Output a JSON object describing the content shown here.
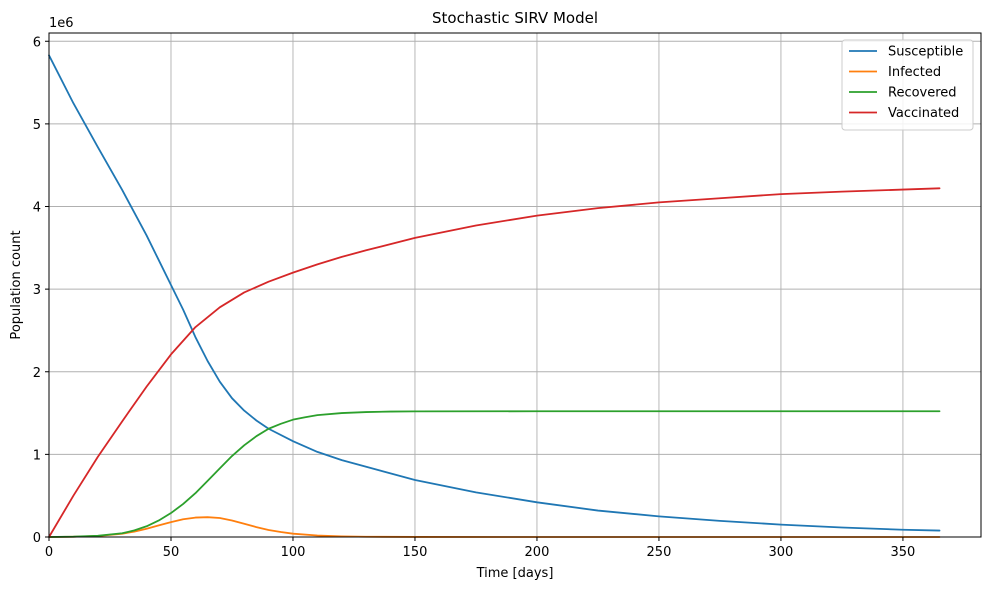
{
  "chart_data": {
    "type": "line",
    "title": "Stochastic SIRV Model",
    "xlabel": "Time [days]",
    "ylabel": "Population count",
    "y_offset_text": "1e6",
    "xlim": [
      0,
      382
    ],
    "ylim": [
      0,
      6100000
    ],
    "x_ticks": [
      0,
      50,
      100,
      150,
      200,
      250,
      300,
      350
    ],
    "y_ticks": [
      0,
      1000000,
      2000000,
      3000000,
      4000000,
      5000000,
      6000000
    ],
    "x_tick_labels": [
      "0",
      "50",
      "100",
      "150",
      "200",
      "250",
      "300",
      "350"
    ],
    "y_tick_labels": [
      "0",
      "1",
      "2",
      "3",
      "4",
      "5",
      "6"
    ],
    "grid": true,
    "legend_position": "top-right",
    "series": [
      {
        "name": "Susceptible",
        "color": "#1f77b4",
        "x": [
          0,
          10,
          20,
          30,
          40,
          45,
          50,
          55,
          60,
          65,
          70,
          75,
          80,
          85,
          90,
          100,
          110,
          120,
          130,
          150,
          175,
          200,
          225,
          250,
          275,
          300,
          325,
          350,
          365
        ],
        "y": [
          5830000,
          5250000,
          4720000,
          4200000,
          3650000,
          3350000,
          3050000,
          2750000,
          2420000,
          2130000,
          1880000,
          1680000,
          1530000,
          1410000,
          1310000,
          1160000,
          1030000,
          930000,
          850000,
          690000,
          540000,
          420000,
          320000,
          250000,
          195000,
          150000,
          115000,
          88000,
          78000
        ]
      },
      {
        "name": "Infected",
        "color": "#ff7f0e",
        "x": [
          0,
          10,
          20,
          30,
          35,
          40,
          45,
          50,
          55,
          60,
          65,
          70,
          75,
          80,
          85,
          90,
          95,
          100,
          110,
          120,
          130,
          150,
          200,
          250,
          300,
          350,
          365
        ],
        "y": [
          0,
          3000,
          12000,
          40000,
          65000,
          100000,
          140000,
          180000,
          215000,
          235000,
          240000,
          230000,
          200000,
          160000,
          120000,
          85000,
          60000,
          40000,
          18000,
          8000,
          3000,
          500,
          0,
          0,
          0,
          0,
          0
        ]
      },
      {
        "name": "Recovered",
        "color": "#2ca02c",
        "x": [
          0,
          10,
          20,
          30,
          35,
          40,
          45,
          50,
          55,
          60,
          65,
          70,
          75,
          80,
          85,
          90,
          95,
          100,
          105,
          110,
          120,
          130,
          140,
          150,
          200,
          250,
          300,
          350,
          365
        ],
        "y": [
          0,
          4000,
          15000,
          45000,
          80000,
          130000,
          200000,
          290000,
          400000,
          530000,
          680000,
          830000,
          980000,
          1110000,
          1220000,
          1310000,
          1370000,
          1420000,
          1450000,
          1475000,
          1500000,
          1512000,
          1518000,
          1520000,
          1522000,
          1522000,
          1522000,
          1522000,
          1522000
        ]
      },
      {
        "name": "Vaccinated",
        "color": "#d62728",
        "x": [
          0,
          10,
          20,
          30,
          40,
          50,
          60,
          70,
          80,
          90,
          100,
          110,
          120,
          130,
          150,
          175,
          200,
          225,
          250,
          275,
          300,
          325,
          350,
          365
        ],
        "y": [
          0,
          500000,
          970000,
          1400000,
          1820000,
          2210000,
          2540000,
          2780000,
          2960000,
          3090000,
          3200000,
          3300000,
          3390000,
          3470000,
          3620000,
          3770000,
          3890000,
          3980000,
          4050000,
          4100000,
          4150000,
          4180000,
          4205000,
          4220000
        ]
      }
    ]
  }
}
